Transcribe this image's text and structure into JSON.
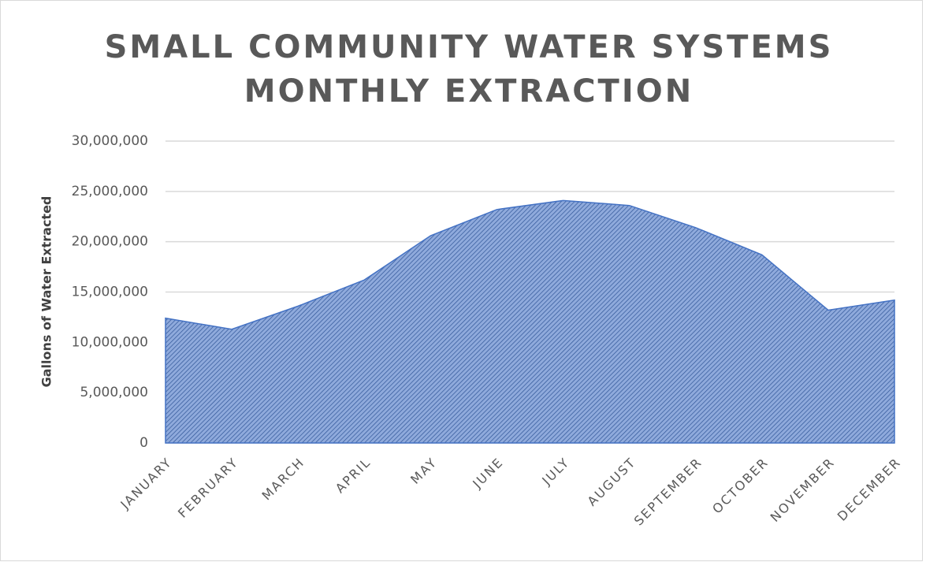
{
  "chart_data": {
    "type": "area",
    "title": [
      "SMALL COMMUNITY WATER SYSTEMS",
      "MONTHLY EXTRACTION"
    ],
    "y_label": "Gallons of Water Extracted",
    "categories": [
      "JANUARY",
      "FEBRUARY",
      "MARCH",
      "APRIL",
      "MAY",
      "JUNE",
      "JULY",
      "AUGUST",
      "SEPTEMBER",
      "OCTOBER",
      "NOVEMBER",
      "DECEMBER"
    ],
    "values": [
      12400000,
      11300000,
      13600000,
      16200000,
      20600000,
      23200000,
      24100000,
      23600000,
      21400000,
      18700000,
      13200000,
      14200000
    ],
    "color": "#4472c4",
    "ylim": [
      0,
      30000000
    ],
    "yticks": [
      0,
      {
        "value": 5000000,
        "label": "5,000,000"
      },
      {
        "value": 10000000,
        "label": "10,000,000"
      },
      {
        "value": 15000000,
        "label": "15,000,000"
      },
      {
        "value": 20000000,
        "label": "20,000,000"
      },
      {
        "value": 25000000,
        "label": "25,000,000"
      },
      {
        "value": 30000000,
        "label": "30,000,000"
      }
    ],
    "grid": true
  }
}
